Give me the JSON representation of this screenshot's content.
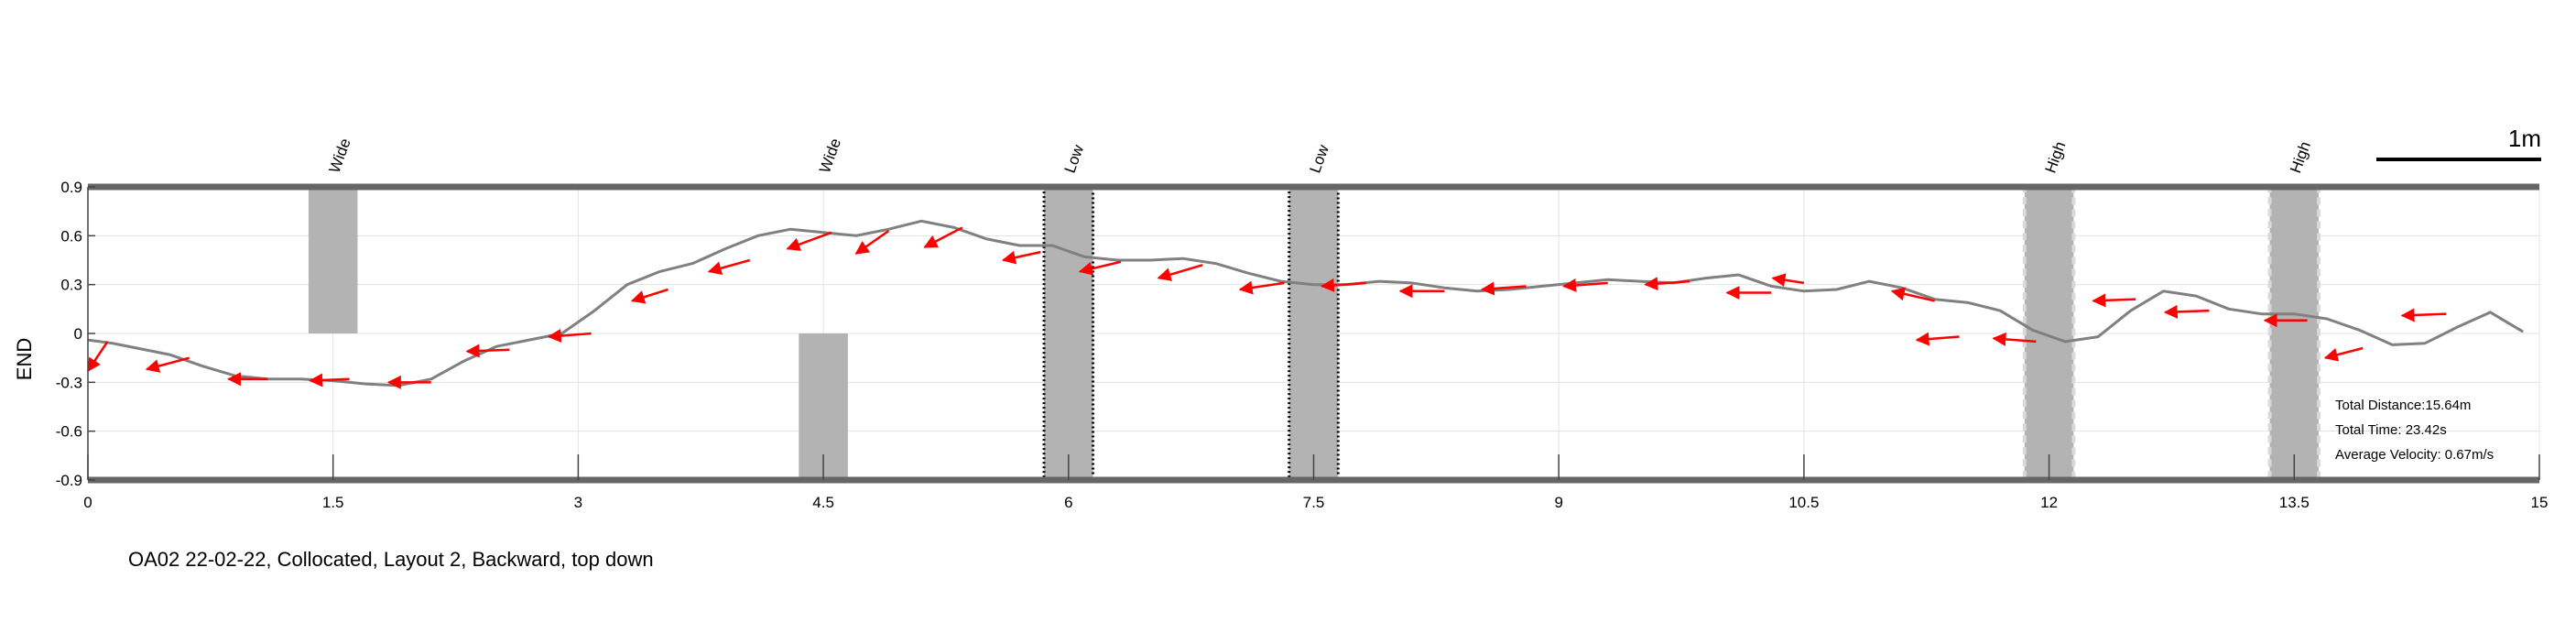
{
  "chart_data": {
    "type": "line",
    "title": "OA02 22-02-22, Collocated, Layout 2, Backward, top down",
    "ylabel": "END",
    "xlabel": "",
    "xlim": [
      0,
      15
    ],
    "ylim": [
      -0.9,
      0.9
    ],
    "grid": true,
    "x_ticks": [
      "0",
      "1.5",
      "3",
      "4.5",
      "6",
      "7.5",
      "9",
      "10.5",
      "12",
      "13.5",
      "15"
    ],
    "y_ticks": [
      "0.9",
      "0.6",
      "0.3",
      "0",
      "-0.3",
      "-0.6",
      "-0.9"
    ],
    "scale_bar": "1m",
    "colors": {
      "path": "#808080",
      "arrows": "#ff0000",
      "obstacles": "#b3b3b3",
      "walls": "#666666"
    },
    "path": {
      "x": [
        0,
        0.15,
        0.3,
        0.5,
        0.7,
        0.9,
        1.1,
        1.3,
        1.5,
        1.7,
        1.9,
        2.1,
        2.3,
        2.5,
        2.7,
        2.9,
        3.1,
        3.3,
        3.5,
        3.7,
        3.9,
        4.1,
        4.3,
        4.5,
        4.7,
        4.9,
        5.1,
        5.3,
        5.5,
        5.7,
        5.9,
        6.1,
        6.3,
        6.5,
        6.7,
        6.9,
        7.1,
        7.3,
        7.5,
        7.7,
        7.9,
        8.1,
        8.3,
        8.5,
        8.7,
        8.9,
        9.1,
        9.3,
        9.5,
        9.7,
        9.9,
        10.1,
        10.3,
        10.5,
        10.7,
        10.9,
        11.1,
        11.3,
        11.5,
        11.7,
        11.9,
        12.1,
        12.3,
        12.5,
        12.7,
        12.9,
        13.1,
        13.3,
        13.5,
        13.7,
        13.9,
        14.1,
        14.3,
        14.5,
        14.7,
        14.9
      ],
      "y": [
        -0.04,
        -0.06,
        -0.09,
        -0.13,
        -0.2,
        -0.26,
        -0.28,
        -0.28,
        -0.29,
        -0.31,
        -0.32,
        -0.28,
        -0.17,
        -0.08,
        -0.04,
        0.0,
        0.14,
        0.3,
        0.38,
        0.43,
        0.52,
        0.6,
        0.64,
        0.62,
        0.6,
        0.64,
        0.69,
        0.65,
        0.58,
        0.54,
        0.54,
        0.47,
        0.45,
        0.45,
        0.46,
        0.43,
        0.37,
        0.32,
        0.3,
        0.3,
        0.32,
        0.31,
        0.28,
        0.26,
        0.27,
        0.29,
        0.31,
        0.33,
        0.32,
        0.31,
        0.34,
        0.36,
        0.29,
        0.26,
        0.27,
        0.32,
        0.28,
        0.21,
        0.19,
        0.14,
        0.02,
        -0.05,
        -0.02,
        0.14,
        0.26,
        0.23,
        0.15,
        0.12,
        0.12,
        0.09,
        0.02,
        -0.07,
        -0.06,
        0.04,
        0.13,
        0.01
      ]
    },
    "arrows": [
      {
        "x": 0.12,
        "y": -0.05,
        "dx": -0.12,
        "dy": -0.18
      },
      {
        "x": 0.62,
        "y": -0.15,
        "dx": -0.26,
        "dy": -0.07
      },
      {
        "x": 1.1,
        "y": -0.28,
        "dx": -0.24,
        "dy": 0.0
      },
      {
        "x": 1.6,
        "y": -0.28,
        "dx": -0.24,
        "dy": -0.01
      },
      {
        "x": 2.1,
        "y": -0.3,
        "dx": -0.26,
        "dy": 0.0
      },
      {
        "x": 2.58,
        "y": -0.1,
        "dx": -0.26,
        "dy": -0.01
      },
      {
        "x": 3.08,
        "y": 0.0,
        "dx": -0.26,
        "dy": -0.02
      },
      {
        "x": 3.55,
        "y": 0.27,
        "dx": -0.22,
        "dy": -0.07
      },
      {
        "x": 4.05,
        "y": 0.45,
        "dx": -0.25,
        "dy": -0.07
      },
      {
        "x": 4.55,
        "y": 0.62,
        "dx": -0.27,
        "dy": -0.1
      },
      {
        "x": 4.9,
        "y": 0.63,
        "dx": -0.2,
        "dy": -0.14
      },
      {
        "x": 5.35,
        "y": 0.65,
        "dx": -0.23,
        "dy": -0.12
      },
      {
        "x": 5.83,
        "y": 0.5,
        "dx": -0.23,
        "dy": -0.05
      },
      {
        "x": 6.32,
        "y": 0.44,
        "dx": -0.25,
        "dy": -0.06
      },
      {
        "x": 6.82,
        "y": 0.42,
        "dx": -0.27,
        "dy": -0.08
      },
      {
        "x": 7.32,
        "y": 0.31,
        "dx": -0.27,
        "dy": -0.04
      },
      {
        "x": 7.82,
        "y": 0.31,
        "dx": -0.27,
        "dy": -0.02
      },
      {
        "x": 8.3,
        "y": 0.26,
        "dx": -0.27,
        "dy": 0.0
      },
      {
        "x": 8.8,
        "y": 0.29,
        "dx": -0.27,
        "dy": -0.02
      },
      {
        "x": 9.3,
        "y": 0.31,
        "dx": -0.27,
        "dy": -0.02
      },
      {
        "x": 9.8,
        "y": 0.32,
        "dx": -0.27,
        "dy": -0.02
      },
      {
        "x": 10.3,
        "y": 0.25,
        "dx": -0.27,
        "dy": 0.0
      },
      {
        "x": 10.5,
        "y": 0.31,
        "dx": -0.19,
        "dy": 0.03
      },
      {
        "x": 11.3,
        "y": 0.2,
        "dx": -0.26,
        "dy": 0.06
      },
      {
        "x": 11.45,
        "y": -0.02,
        "dx": -0.26,
        "dy": -0.02
      },
      {
        "x": 11.92,
        "y": -0.05,
        "dx": -0.26,
        "dy": 0.02
      },
      {
        "x": 12.53,
        "y": 0.21,
        "dx": -0.26,
        "dy": -0.01
      },
      {
        "x": 12.98,
        "y": 0.14,
        "dx": -0.27,
        "dy": -0.01
      },
      {
        "x": 13.58,
        "y": 0.08,
        "dx": -0.26,
        "dy": 0.0
      },
      {
        "x": 13.92,
        "y": -0.09,
        "dx": -0.23,
        "dy": -0.06
      },
      {
        "x": 14.43,
        "y": 0.12,
        "dx": -0.27,
        "dy": -0.01
      }
    ],
    "obstacles": [
      {
        "label": "Wide",
        "x0": 1.35,
        "x1": 1.65,
        "y0": 0.0,
        "y1": 0.9,
        "style": "solid"
      },
      {
        "label": "Wide",
        "x0": 4.35,
        "x1": 4.65,
        "y0": -0.9,
        "y1": 0.0,
        "style": "solid"
      },
      {
        "label": "Low",
        "x0": 5.85,
        "x1": 6.15,
        "y0": -0.9,
        "y1": 0.9,
        "style": "dotted"
      },
      {
        "label": "Low",
        "x0": 7.35,
        "x1": 7.65,
        "y0": -0.9,
        "y1": 0.9,
        "style": "dotted"
      },
      {
        "label": "High",
        "x0": 11.85,
        "x1": 12.15,
        "y0": -0.9,
        "y1": 0.9,
        "style": "dashed"
      },
      {
        "label": "High",
        "x0": 13.35,
        "x1": 13.65,
        "y0": -0.9,
        "y1": 0.9,
        "style": "dashed"
      }
    ],
    "stats": {
      "total_distance": "Total Distance:15.64m",
      "total_time": "Total Time: 23.42s",
      "average_velocity": "Average Velocity: 0.67m/s"
    }
  }
}
